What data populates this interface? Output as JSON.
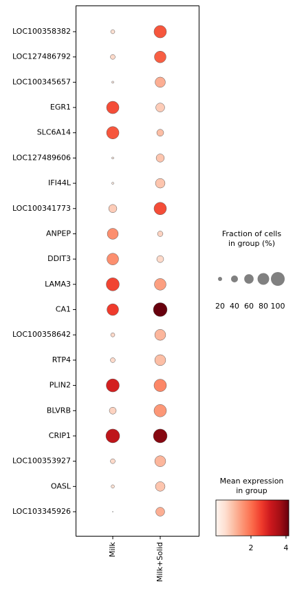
{
  "chart_data": {
    "type": "dot",
    "categories": [
      "LOC100358382",
      "LOC127486792",
      "LOC100345657",
      "EGR1",
      "SLC6A14",
      "LOC127489606",
      "IFI44L",
      "LOC100341773",
      "ANPEP",
      "DDIT3",
      "LAMA3",
      "CA1",
      "LOC100358642",
      "RTP4",
      "PLIN2",
      "BLVRB",
      "CRIP1",
      "LOC100353927",
      "OASL",
      "LOC103345926"
    ],
    "series": [
      {
        "name": "Milk",
        "fraction": [
          20,
          25,
          8,
          87,
          87,
          8,
          8,
          50,
          74,
          80,
          93,
          80,
          20,
          25,
          93,
          40,
          100,
          25,
          15,
          2
        ],
        "expression": [
          0.5,
          0.6,
          0.3,
          2.4,
          2.3,
          0.3,
          0.3,
          0.8,
          1.6,
          1.6,
          2.5,
          2.6,
          0.6,
          0.6,
          3.0,
          0.7,
          3.3,
          0.6,
          0.5,
          0.3
        ]
      },
      {
        "name": "Milk+Solid",
        "fraction": [
          87,
          80,
          68,
          56,
          40,
          50,
          62,
          87,
          29,
          40,
          80,
          100,
          74,
          74,
          87,
          87,
          100,
          74,
          62,
          56
        ],
        "expression": [
          2.3,
          2.2,
          1.2,
          0.8,
          1.0,
          0.9,
          0.9,
          2.4,
          0.7,
          0.6,
          1.4,
          4.2,
          1.1,
          1.0,
          1.7,
          1.5,
          3.9,
          1.1,
          0.9,
          1.2
        ]
      }
    ],
    "size_legend": {
      "title": [
        "Fraction of cells",
        "in group (%)"
      ],
      "ticks": [
        20,
        40,
        60,
        80,
        100
      ],
      "color": "#808080"
    },
    "color_legend": {
      "title": [
        "Mean expression",
        "in group"
      ],
      "clim": [
        0,
        4.16
      ],
      "ticks": [
        2,
        4
      ],
      "colormap": [
        "#fff5f0",
        "#fee0d2",
        "#fcbba1",
        "#fc9272",
        "#fb6a4a",
        "#ef3b2c",
        "#cb181d",
        "#a50f15",
        "#67000d"
      ]
    }
  }
}
